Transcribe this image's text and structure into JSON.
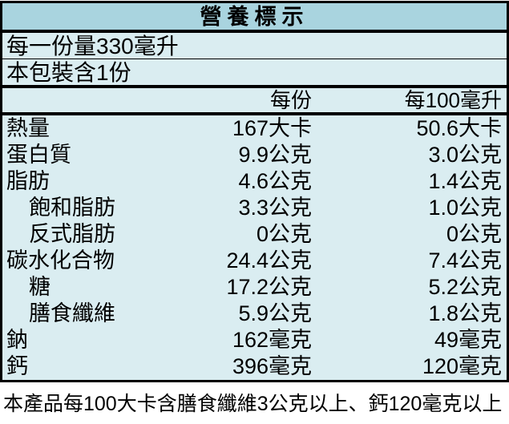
{
  "label": {
    "title": "營養標示",
    "serving_size_line": "每一份量330毫升",
    "servings_per_package_line": "本包裝含1份",
    "column_headers": {
      "per_serving": "每份",
      "per_100ml": "每100毫升"
    },
    "rows": [
      {
        "label": "熱量",
        "indent": false,
        "per_serving": "167大卡",
        "per_100ml": "50.6大卡"
      },
      {
        "label": "蛋白質",
        "indent": false,
        "per_serving": "9.9公克",
        "per_100ml": "3.0公克"
      },
      {
        "label": "脂肪",
        "indent": false,
        "per_serving": "4.6公克",
        "per_100ml": "1.4公克"
      },
      {
        "label": "飽和脂肪",
        "indent": true,
        "per_serving": "3.3公克",
        "per_100ml": "1.0公克"
      },
      {
        "label": "反式脂肪",
        "indent": true,
        "per_serving": "0公克",
        "per_100ml": "0公克"
      },
      {
        "label": "碳水化合物",
        "indent": false,
        "per_serving": "24.4公克",
        "per_100ml": "7.4公克"
      },
      {
        "label": "糖",
        "indent": true,
        "per_serving": "17.2公克",
        "per_100ml": "5.2公克"
      },
      {
        "label": "膳食纖維",
        "indent": true,
        "per_serving": "5.9公克",
        "per_100ml": "1.8公克"
      },
      {
        "label": "鈉",
        "indent": false,
        "per_serving": "162毫克",
        "per_100ml": "49毫克"
      },
      {
        "label": "鈣",
        "indent": false,
        "per_serving": "396毫克",
        "per_100ml": "120毫克"
      }
    ],
    "footnote": "本產品每100大卡含膳食纖維3公克以上、鈣120毫克以上"
  },
  "colors": {
    "title_bg": "#a9d4df",
    "body_bg": "#daedf1",
    "border": "#000000",
    "page_bg": "#ffffff",
    "text": "#000000"
  }
}
